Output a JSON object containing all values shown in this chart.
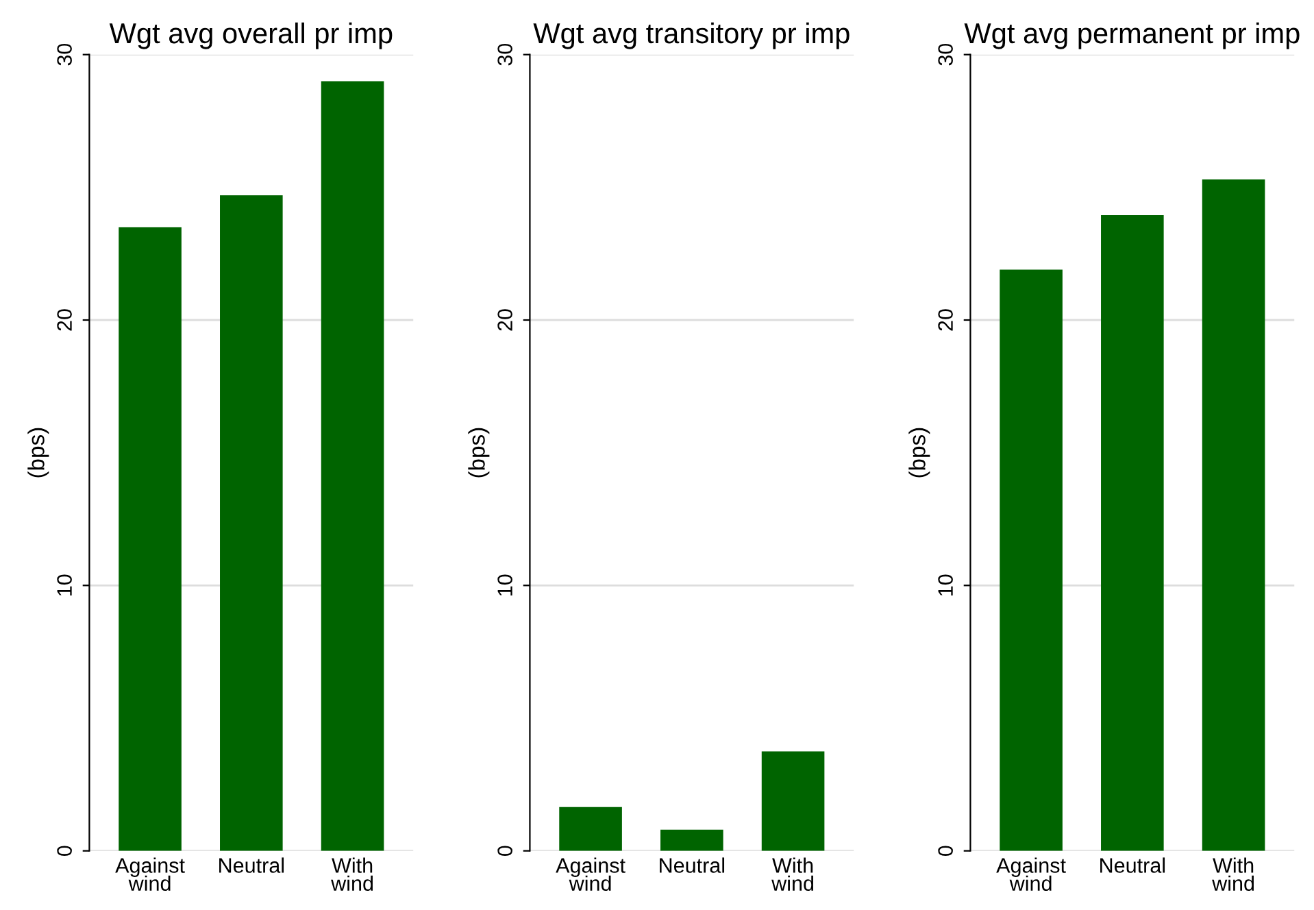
{
  "chart_data": [
    {
      "type": "bar",
      "title": "Wgt avg overall pr imp",
      "ylabel": "(bps)",
      "categories": [
        "Against\nwind",
        "Neutral",
        "With\nwind"
      ],
      "values": [
        23.5,
        24.7,
        29.0
      ],
      "color": "#006400",
      "ylim": [
        0,
        30
      ],
      "yticks": [
        0,
        10,
        20,
        30
      ],
      "grid": "y"
    },
    {
      "type": "bar",
      "title": "Wgt avg transitory pr imp",
      "ylabel": "(bps)",
      "categories": [
        "Against\nwind",
        "Neutral",
        "With\nwind"
      ],
      "values": [
        1.65,
        0.8,
        3.75
      ],
      "color": "#006400",
      "ylim": [
        0,
        30
      ],
      "yticks": [
        0,
        10,
        20,
        30
      ],
      "grid": "y"
    },
    {
      "type": "bar",
      "title": "Wgt avg permanent pr imp",
      "ylabel": "(bps)",
      "categories": [
        "Against\nwind",
        "Neutral",
        "With\nwind"
      ],
      "values": [
        21.9,
        23.95,
        25.3
      ],
      "color": "#006400",
      "ylim": [
        0,
        30
      ],
      "yticks": [
        0,
        10,
        20,
        30
      ],
      "grid": "y"
    }
  ]
}
